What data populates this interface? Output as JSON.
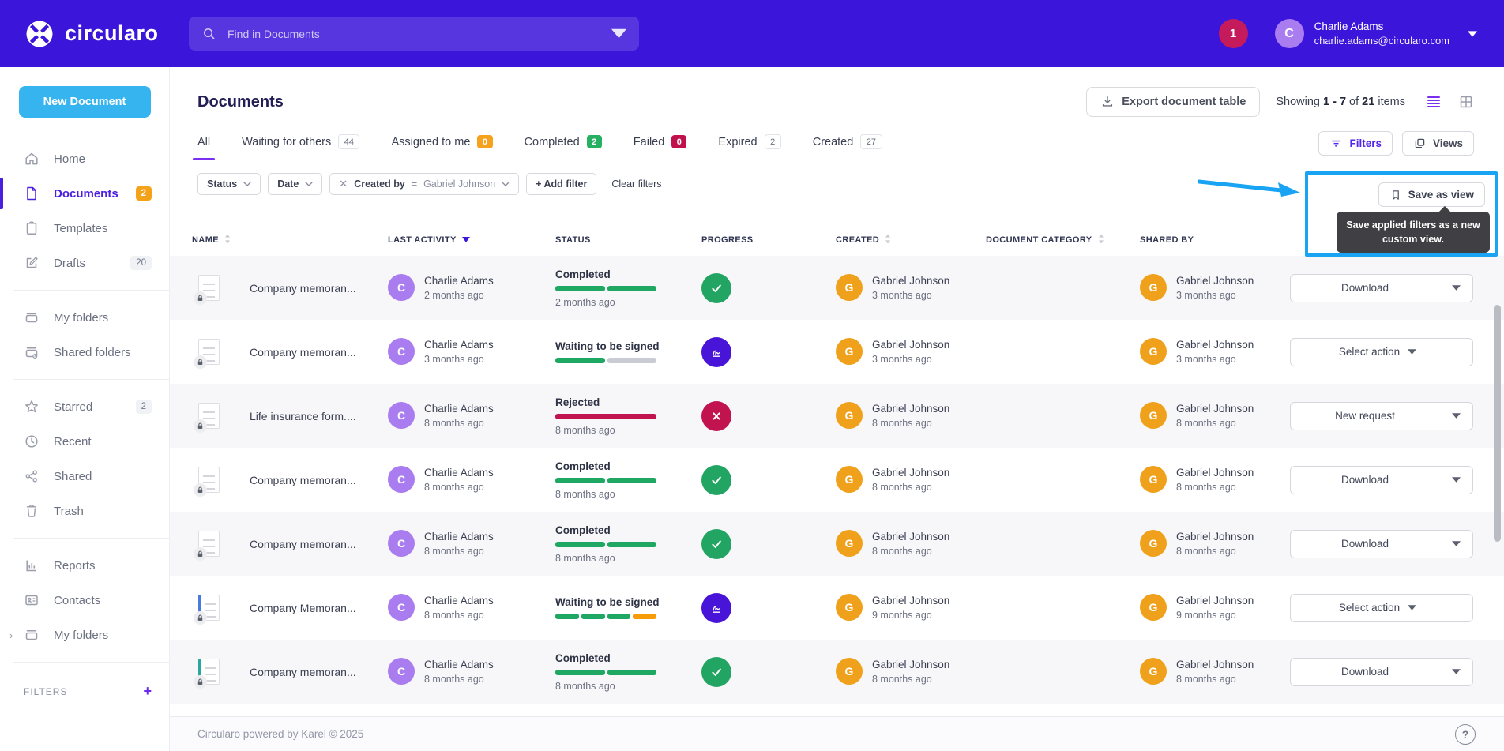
{
  "brand": {
    "logo_text": "circularo"
  },
  "colors": {
    "brand_purple": "#3c15da",
    "annotation_blue": "#18a3f3",
    "new_document_blue": "#35b4f0",
    "success_green": "#22a562",
    "danger_crimson": "#c1134e",
    "warning_orange": "#f6a21c",
    "sign_purple": "#4714d8",
    "notification_red": "#c51a5b",
    "avatar_purple": "#a97df0",
    "avatar_amber": "#f0a11c"
  },
  "topbar": {
    "search_placeholder": "Find in Documents",
    "notification_count": "1",
    "user": {
      "initial": "C",
      "name": "Charlie Adams",
      "email": "charlie.adams@circularo.com"
    }
  },
  "sidebar": {
    "new_document_label": "New Document",
    "filters_label": "FILTERS",
    "filters_plus": "+",
    "sections": [
      {
        "items": [
          {
            "label": "Home",
            "icon": "home"
          },
          {
            "label": "Documents",
            "icon": "document",
            "active": true,
            "badge": "2",
            "badge_style": "s-orange"
          },
          {
            "label": "Templates",
            "icon": "template"
          },
          {
            "label": "Drafts",
            "icon": "draft",
            "badge": "20",
            "badge_style": "s-light"
          }
        ]
      },
      {
        "items": [
          {
            "label": "My folders",
            "icon": "folder"
          },
          {
            "label": "Shared folders",
            "icon": "shared-folder"
          }
        ]
      },
      {
        "items": [
          {
            "label": "Starred",
            "icon": "star",
            "badge": "2",
            "badge_style": "s-light"
          },
          {
            "label": "Recent",
            "icon": "clock"
          },
          {
            "label": "Shared",
            "icon": "share"
          },
          {
            "label": "Trash",
            "icon": "trash"
          }
        ]
      },
      {
        "items": [
          {
            "label": "Reports",
            "icon": "chart"
          },
          {
            "label": "Contacts",
            "icon": "contacts"
          },
          {
            "label": "My folders",
            "icon": "folder",
            "chevron": "›"
          }
        ]
      }
    ]
  },
  "header": {
    "title": "Documents",
    "export_button": "Export document table",
    "showing": {
      "prefix": "Showing",
      "range": "1 - 7",
      "of": "of",
      "total": "21",
      "suffix": "items"
    }
  },
  "tabs": [
    {
      "label": "All",
      "active": true
    },
    {
      "label": "Waiting for others",
      "badge": "44",
      "badge_style": "b-outline"
    },
    {
      "label": "Assigned to me",
      "badge": "0",
      "badge_style": "b-orange"
    },
    {
      "label": "Completed",
      "badge": "2",
      "badge_style": "b-green"
    },
    {
      "label": "Failed",
      "badge": "0",
      "badge_style": "b-crimson"
    },
    {
      "label": "Expired",
      "badge": "2",
      "badge_style": "b-outline"
    },
    {
      "label": "Created",
      "badge": "27",
      "badge_style": "b-outline"
    }
  ],
  "filter_bar": {
    "status_label": "Status",
    "date_label": "Date",
    "created_by": {
      "close": "✕",
      "field": "Created by",
      "operator": "=",
      "value": "Gabriel Johnson"
    },
    "add_filter_label": "+ Add filter",
    "clear_filters_label": "Clear filters",
    "filters_button": "Filters",
    "views_button": "Views",
    "save_as_view_label": "Save as view",
    "tooltip": "Save applied filters as a new custom view."
  },
  "table": {
    "columns": [
      {
        "label": "NAME",
        "sort": "both"
      },
      {
        "label": "LAST ACTIVITY",
        "sort": "desc"
      },
      {
        "label": "STATUS",
        "sort": "none"
      },
      {
        "label": "PROGRESS",
        "sort": "none"
      },
      {
        "label": "CREATED",
        "sort": "both"
      },
      {
        "label": "DOCUMENT CATEGORY",
        "sort": "both"
      },
      {
        "label": "SHARED BY",
        "sort": "none"
      }
    ],
    "rows": [
      {
        "doc_variant": "lines",
        "name": "Company memoran...",
        "last_activity": {
          "initial": "C",
          "name": "Charlie Adams",
          "time": "2 months ago",
          "color": "#a97df0"
        },
        "status": {
          "label": "Completed",
          "time": "2 months ago",
          "segments": [
            "green",
            "green"
          ]
        },
        "progress_icon": "check",
        "created": {
          "initial": "G",
          "name": "Gabriel Johnson",
          "time": "3 months ago",
          "color": "#f0a11c"
        },
        "category": "",
        "shared_by": {
          "initial": "G",
          "name": "Gabriel Johnson",
          "time": "3 months ago",
          "color": "#f0a11c"
        },
        "action": {
          "label": "Download",
          "split": true
        }
      },
      {
        "doc_variant": "lines",
        "name": "Company memoran...",
        "last_activity": {
          "initial": "C",
          "name": "Charlie Adams",
          "time": "3 months ago",
          "color": "#a97df0"
        },
        "status": {
          "label": "Waiting to be signed",
          "time": "",
          "segments": [
            "green",
            "gray"
          ]
        },
        "progress_icon": "sign",
        "created": {
          "initial": "G",
          "name": "Gabriel Johnson",
          "time": "3 months ago",
          "color": "#f0a11c"
        },
        "category": "",
        "shared_by": {
          "initial": "G",
          "name": "Gabriel Johnson",
          "time": "3 months ago",
          "color": "#f0a11c"
        },
        "action": {
          "label": "Select action",
          "split": false
        }
      },
      {
        "doc_variant": "text",
        "name": "Life insurance form....",
        "last_activity": {
          "initial": "C",
          "name": "Charlie Adams",
          "time": "8 months ago",
          "color": "#a97df0"
        },
        "status": {
          "label": "Rejected",
          "time": "8 months ago",
          "segments": [
            "crimson"
          ]
        },
        "progress_icon": "cross",
        "created": {
          "initial": "G",
          "name": "Gabriel Johnson",
          "time": "8 months ago",
          "color": "#f0a11c"
        },
        "category": "",
        "shared_by": {
          "initial": "G",
          "name": "Gabriel Johnson",
          "time": "8 months ago",
          "color": "#f0a11c"
        },
        "action": {
          "label": "New request",
          "split": true
        }
      },
      {
        "doc_variant": "lines",
        "name": "Company memoran...",
        "last_activity": {
          "initial": "C",
          "name": "Charlie Adams",
          "time": "8 months ago",
          "color": "#a97df0"
        },
        "status": {
          "label": "Completed",
          "time": "8 months ago",
          "segments": [
            "green",
            "green"
          ]
        },
        "progress_icon": "check",
        "created": {
          "initial": "G",
          "name": "Gabriel Johnson",
          "time": "8 months ago",
          "color": "#f0a11c"
        },
        "category": "",
        "shared_by": {
          "initial": "G",
          "name": "Gabriel Johnson",
          "time": "8 months ago",
          "color": "#f0a11c"
        },
        "action": {
          "label": "Download",
          "split": true
        }
      },
      {
        "doc_variant": "text",
        "name": "Company memoran...",
        "last_activity": {
          "initial": "C",
          "name": "Charlie Adams",
          "time": "8 months ago",
          "color": "#a97df0"
        },
        "status": {
          "label": "Completed",
          "time": "8 months ago",
          "segments": [
            "green",
            "green"
          ]
        },
        "progress_icon": "check",
        "created": {
          "initial": "G",
          "name": "Gabriel Johnson",
          "time": "8 months ago",
          "color": "#f0a11c"
        },
        "category": "",
        "shared_by": {
          "initial": "G",
          "name": "Gabriel Johnson",
          "time": "8 months ago",
          "color": "#f0a11c"
        },
        "action": {
          "label": "Download",
          "split": true
        }
      },
      {
        "doc_variant": "blue",
        "name": "Company Memoran...",
        "last_activity": {
          "initial": "C",
          "name": "Charlie Adams",
          "time": "8 months ago",
          "color": "#a97df0"
        },
        "status": {
          "label": "Waiting to be signed",
          "time": "",
          "segments": [
            "green",
            "green",
            "green",
            "orange"
          ]
        },
        "progress_icon": "sign",
        "created": {
          "initial": "G",
          "name": "Gabriel Johnson",
          "time": "9 months ago",
          "color": "#f0a11c"
        },
        "category": "",
        "shared_by": {
          "initial": "G",
          "name": "Gabriel Johnson",
          "time": "9 months ago",
          "color": "#f0a11c"
        },
        "action": {
          "label": "Select action",
          "split": false
        }
      },
      {
        "doc_variant": "teal",
        "name": "Company memoran...",
        "last_activity": {
          "initial": "C",
          "name": "Charlie Adams",
          "time": "8 months ago",
          "color": "#a97df0"
        },
        "status": {
          "label": "Completed",
          "time": "8 months ago",
          "segments": [
            "green",
            "green"
          ]
        },
        "progress_icon": "check",
        "created": {
          "initial": "G",
          "name": "Gabriel Johnson",
          "time": "8 months ago",
          "color": "#f0a11c"
        },
        "category": "",
        "shared_by": {
          "initial": "G",
          "name": "Gabriel Johnson",
          "time": "8 months ago",
          "color": "#f0a11c"
        },
        "action": {
          "label": "Download",
          "split": true
        }
      }
    ]
  },
  "footer": {
    "text": "Circularo powered by Karel © 2025",
    "help_label": "?"
  }
}
